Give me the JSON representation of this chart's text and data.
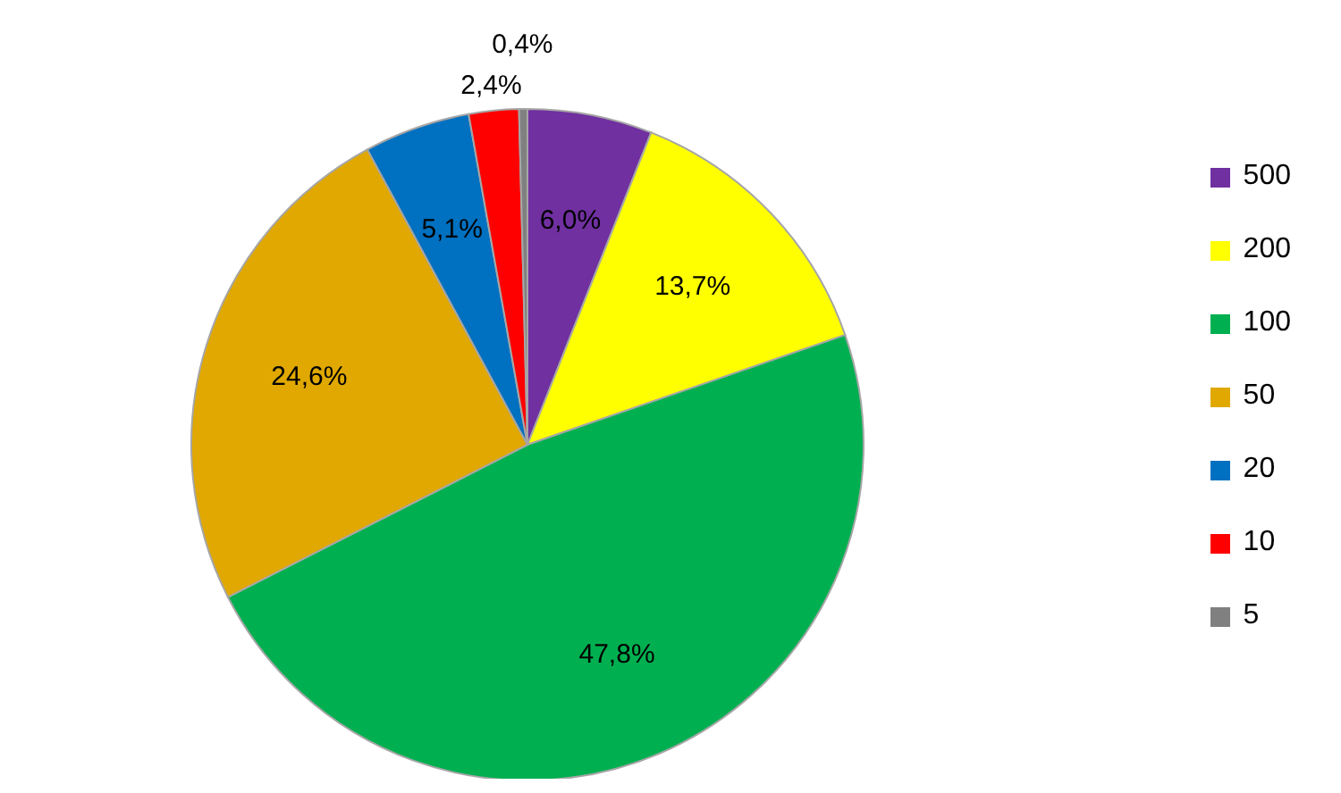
{
  "chart_data": {
    "type": "pie",
    "categories": [
      "500",
      "200",
      "100",
      "50",
      "20",
      "10",
      "5"
    ],
    "values": [
      6.0,
      13.7,
      47.8,
      24.6,
      5.1,
      2.4,
      0.4
    ],
    "colors": [
      "#7030a0",
      "#ffff00",
      "#00b050",
      "#e0a800",
      "#0070c0",
      "#ff0000",
      "#808080"
    ],
    "value_labels": [
      "6,0%",
      "13,7%",
      "47,8%",
      "24,6%",
      "5,1%",
      "2,4%",
      "0,4%"
    ],
    "legend": "right"
  }
}
